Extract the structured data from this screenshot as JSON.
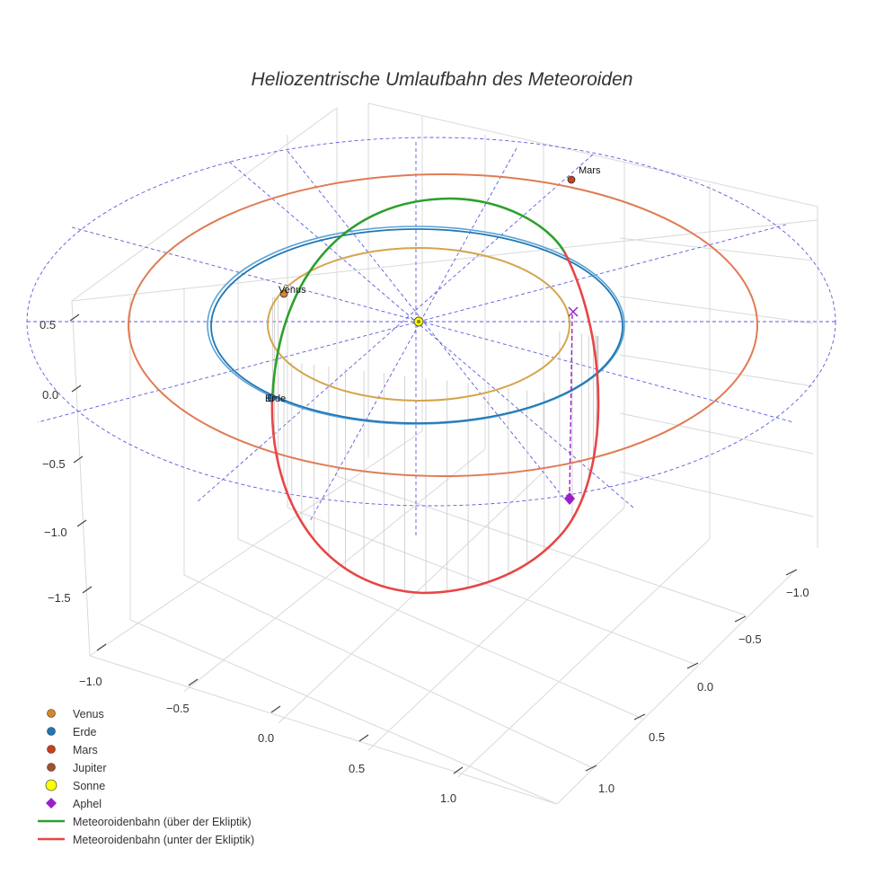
{
  "chart_data": {
    "type": "3d-line",
    "title": "Heliozentrische Umlaufbahn des Meteoroiden",
    "x_ticks": [
      "−1.0",
      "−0.5",
      "0.0",
      "0.5",
      "1.0"
    ],
    "y_ticks": [
      "−1.0",
      "−0.5",
      "0.0",
      "0.5",
      "1.0"
    ],
    "z_ticks": [
      "0.5",
      "0.0",
      "−0.5",
      "−1.0",
      "−1.5"
    ],
    "orbits": [
      {
        "name": "Venus",
        "radius_au": 0.72,
        "color": "#d4a54c"
      },
      {
        "name": "Erde",
        "radius_au": 1.0,
        "color": "#1f77b4"
      },
      {
        "name": "Mars",
        "radius_au": 1.52,
        "color": "#e07b54"
      }
    ],
    "planet_labels": [
      "Venus",
      "Erde",
      "Mars"
    ],
    "meteoroid_orbit": {
      "above_ecliptic": {
        "color": "#2ca02c"
      },
      "below_ecliptic": {
        "color": "#e84545"
      }
    },
    "aphel_marker_color": "#9b1fc9",
    "legend": {
      "position": "bottom-left",
      "items": [
        {
          "label": "Venus",
          "symbol": "circle",
          "color": "#d4862a"
        },
        {
          "label": "Erde",
          "symbol": "circle",
          "color": "#1f77b4"
        },
        {
          "label": "Mars",
          "symbol": "circle",
          "color": "#c8401e"
        },
        {
          "label": "Jupiter",
          "symbol": "circle",
          "color": "#a0522d"
        },
        {
          "label": "Sonne",
          "symbol": "circle",
          "color": "#ffff00"
        },
        {
          "label": "Aphel",
          "symbol": "diamond",
          "color": "#9b1fc9"
        },
        {
          "label": "Meteoroidenbahn (über der Ekliptik)",
          "symbol": "line",
          "color": "#2ca02c"
        },
        {
          "label": "Meteoroidenbahn (unter der Ekliptik)",
          "symbol": "line",
          "color": "#e84545"
        }
      ]
    }
  }
}
